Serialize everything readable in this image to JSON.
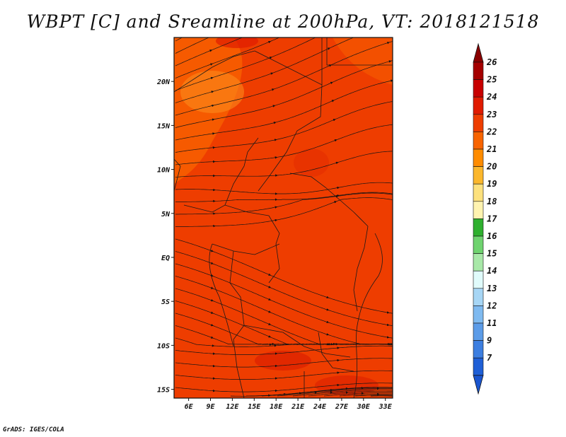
{
  "title": "WBPT [C] and Sreamline at 200hPa, VT: 2018121518",
  "footer": "GrADS: IGES/COLA",
  "map": {
    "lat_range": [
      -16,
      25
    ],
    "lon_range": [
      4,
      34
    ],
    "lat_ticks": [
      "20N",
      "15N",
      "10N",
      "5N",
      "EQ",
      "5S",
      "10S",
      "15S"
    ],
    "lon_ticks": [
      "6E",
      "9E",
      "12E",
      "15E",
      "18E",
      "21E",
      "24E",
      "27E",
      "30E",
      "33E"
    ],
    "dominant_value_range_C": [
      23,
      24
    ]
  },
  "colorbar": {
    "labels": [
      "26",
      "25",
      "24",
      "23",
      "22",
      "21",
      "20",
      "19",
      "18",
      "17",
      "16",
      "15",
      "14",
      "13",
      "12",
      "11",
      "9",
      "7"
    ],
    "colors": [
      "#a50000",
      "#c80000",
      "#e01b00",
      "#ee3d00",
      "#f86400",
      "#ff8c00",
      "#fbb72c",
      "#fde17d",
      "#fff3b0",
      "#2fb02f",
      "#6fd36f",
      "#a8e8a8",
      "#e0fbfb",
      "#a7d6f5",
      "#7fbaf0",
      "#5c9ce8",
      "#3c7ee0",
      "#1f5fd6"
    ],
    "top_arrow_color": "#8a0000",
    "bottom_arrow_color": "#1a55cf"
  }
}
